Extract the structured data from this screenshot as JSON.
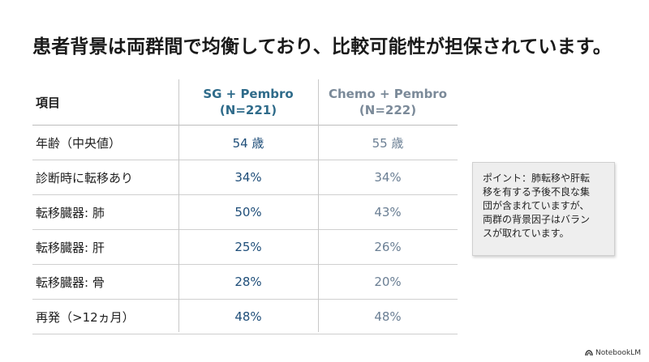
{
  "slide": {
    "title": "患者背景は両群間で均衡しており、比較可能性が担保されています。"
  },
  "table": {
    "header": {
      "label": "項目",
      "sg_line1": "SG + Pembro",
      "sg_line2": "(N=221)",
      "chemo_line1": "Chemo + Pembro",
      "chemo_line2": "(N=222)"
    },
    "rows": [
      {
        "label": "年齢（中央値）",
        "sg": "54 歳",
        "chemo": "55 歳"
      },
      {
        "label": "診断時に転移あり",
        "sg": "34%",
        "chemo": "34%"
      },
      {
        "label": "転移臓器: 肺",
        "sg": "50%",
        "chemo": "43%"
      },
      {
        "label": "転移臓器: 肝",
        "sg": "25%",
        "chemo": "26%"
      },
      {
        "label": "転移臓器: 骨",
        "sg": "28%",
        "chemo": "20%"
      },
      {
        "label": "再発（>12ヵ月）",
        "sg": "48%",
        "chemo": "48%"
      }
    ]
  },
  "callout": {
    "lines": [
      "ポイント：肺転移や肝転",
      "移を有する予後不良な集",
      "団が含まれていますが、",
      "両群の背景因子はバラン",
      "スが取れています。"
    ]
  },
  "watermark": {
    "icon": "notebooklm-logo-icon",
    "text": "NotebookLM"
  },
  "colors": {
    "sg_header": "#2f6b8a",
    "sg_values": "#1f4e79",
    "chemo_header": "#7b8a99",
    "chemo_values": "#6b7f94",
    "callout_bg": "#eeeeee"
  }
}
